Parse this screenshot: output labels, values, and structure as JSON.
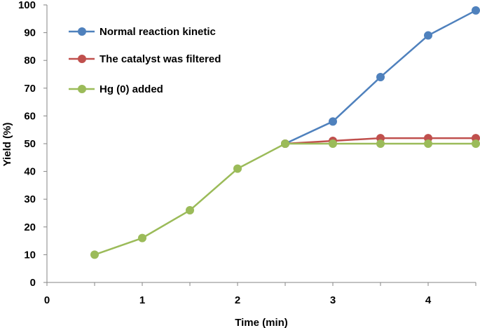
{
  "chart_data": {
    "type": "line",
    "title": "",
    "xlabel": "Time (min)",
    "ylabel": "Yield (%)",
    "xlim": [
      0,
      4.5
    ],
    "ylim": [
      0,
      100
    ],
    "xticks": [
      "0",
      "1",
      "2",
      "3",
      "4"
    ],
    "yticks": [
      "0",
      "10",
      "20",
      "30",
      "40",
      "50",
      "60",
      "70",
      "80",
      "90",
      "100"
    ],
    "grid": false,
    "legend_position": "top-left",
    "series": [
      {
        "name": "Normal reaction kinetic",
        "color": "#4f81bd",
        "x": [
          2.5,
          3,
          3.5,
          4,
          4.5
        ],
        "y": [
          50,
          58,
          74,
          89,
          98
        ]
      },
      {
        "name": "The catalyst was filtered",
        "color": "#c0504d",
        "x": [
          2.5,
          3,
          3.5,
          4,
          4.5
        ],
        "y": [
          50,
          51,
          52,
          52,
          52
        ]
      },
      {
        "name": "Hg (0) added",
        "color": "#9bbb59",
        "x": [
          0.5,
          1,
          1.5,
          2,
          2.5,
          3,
          3.5,
          4,
          4.5
        ],
        "y": [
          10,
          16,
          26,
          41,
          50,
          50,
          50,
          50,
          50
        ]
      }
    ]
  }
}
